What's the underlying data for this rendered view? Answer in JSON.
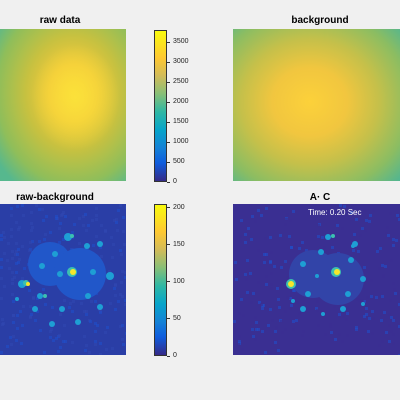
{
  "colors": {
    "background": "#f0f0f0",
    "colormap": "parula"
  },
  "panels": {
    "raw": {
      "title": "raw data"
    },
    "bg": {
      "title": "background"
    },
    "diff": {
      "title": "raw-background"
    },
    "ac": {
      "title": "A· C",
      "annotation": "Time: 0.20 Sec"
    }
  },
  "chart_data": [
    {
      "type": "heatmap",
      "title": "raw data",
      "colorbar": {
        "range": [
          0,
          3800
        ],
        "ticks": [
          0,
          500,
          1000,
          1500,
          2000,
          2500,
          3000,
          3500
        ]
      }
    },
    {
      "type": "heatmap",
      "title": "background"
    },
    {
      "type": "heatmap",
      "title": "raw-background",
      "colorbar": {
        "range": [
          0,
          205
        ],
        "ticks": [
          0,
          50,
          100,
          150,
          200
        ]
      }
    },
    {
      "type": "heatmap",
      "title": "A· C",
      "annotation": "Time: 0.20 Sec"
    }
  ]
}
